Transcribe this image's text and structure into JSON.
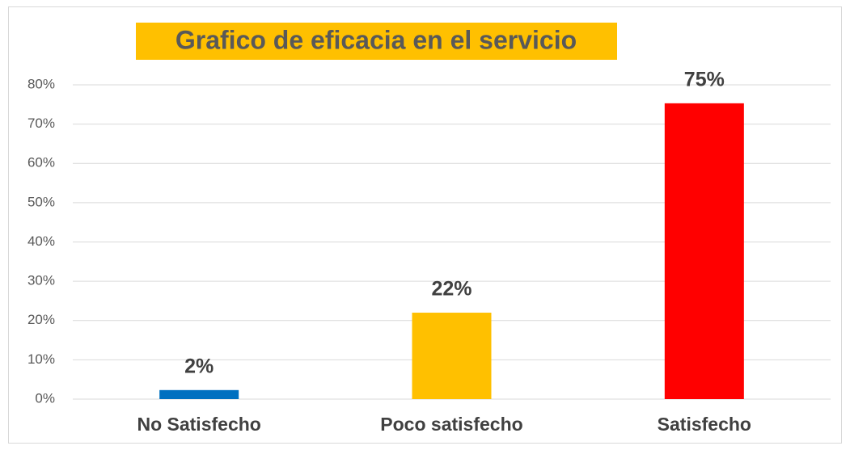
{
  "chart_data": {
    "type": "bar",
    "title": "Grafico de eficacia en el servicio",
    "categories": [
      "No Satisfecho",
      "Poco satisfecho",
      "Satisfecho"
    ],
    "values": [
      2.3,
      22,
      75.3
    ],
    "value_labels": [
      "2%",
      "22%",
      "75%"
    ],
    "colors": [
      "#0070c0",
      "#ffc000",
      "#ff0000"
    ],
    "title_background": "#ffc000",
    "ylim": [
      0,
      80
    ],
    "yticks": [
      {
        "value": 0,
        "label": "0%"
      },
      {
        "value": 10,
        "label": "10%"
      },
      {
        "value": 20,
        "label": "20%"
      },
      {
        "value": 30,
        "label": "30%"
      },
      {
        "value": 40,
        "label": "40%"
      },
      {
        "value": 50,
        "label": "50%"
      },
      {
        "value": 60,
        "label": "60%"
      },
      {
        "value": 70,
        "label": "70%"
      },
      {
        "value": 80,
        "label": "80%"
      }
    ],
    "grid": true
  }
}
